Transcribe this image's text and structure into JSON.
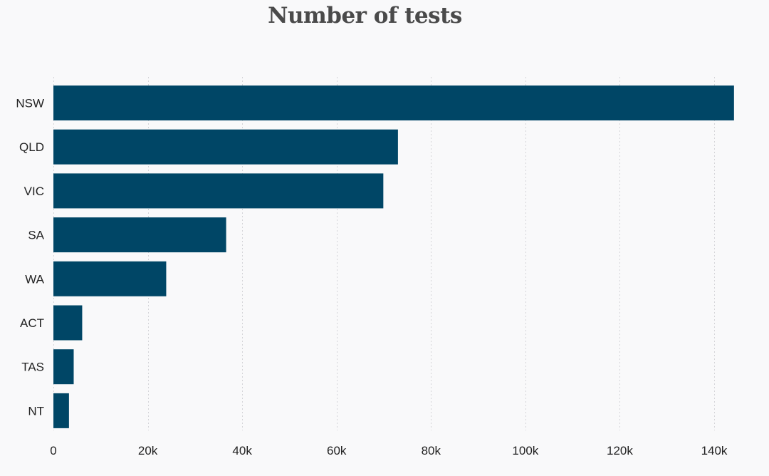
{
  "chart_data": {
    "type": "bar",
    "orientation": "horizontal",
    "title": "Number of tests",
    "xlabel": "",
    "ylabel": "",
    "categories": [
      "NSW",
      "QLD",
      "VIC",
      "SA",
      "WA",
      "ACT",
      "TAS",
      "NT"
    ],
    "values": [
      144200,
      73000,
      69900,
      36600,
      23900,
      6100,
      4300,
      3300
    ],
    "xlim": [
      0,
      140000
    ],
    "xticks": [
      0,
      20000,
      40000,
      60000,
      80000,
      100000,
      120000,
      140000
    ],
    "xtick_labels": [
      "0",
      "20k",
      "40k",
      "60k",
      "80k",
      "100k",
      "120k",
      "140k"
    ],
    "grid": true,
    "legend": "none",
    "bar_color": "#004666"
  }
}
